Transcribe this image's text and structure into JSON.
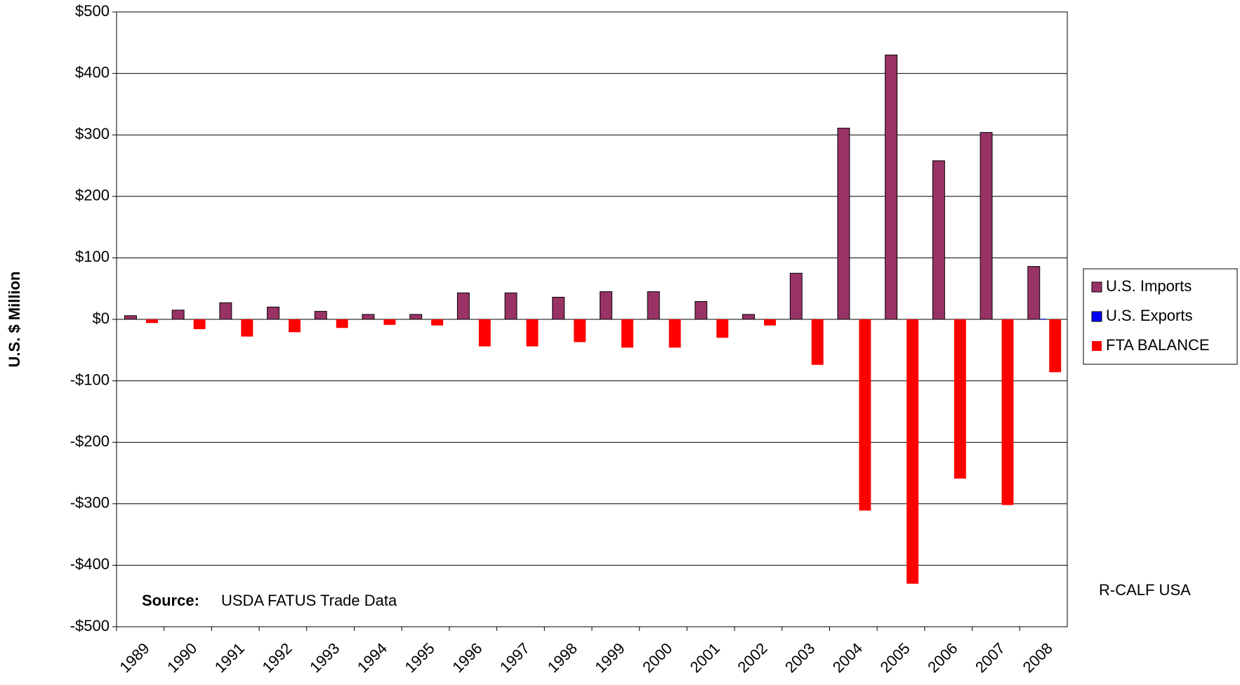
{
  "chart_data": {
    "type": "bar",
    "y_label": "U.S. $ Million",
    "categories": [
      "1989",
      "1990",
      "1991",
      "1992",
      "1993",
      "1994",
      "1995",
      "1996",
      "1997",
      "1998",
      "1999",
      "2000",
      "2001",
      "2002",
      "2003",
      "2004",
      "2005",
      "2006",
      "2007",
      "2008"
    ],
    "series": [
      {
        "name": "U.S. Imports",
        "color": "#993366",
        "values": [
          6,
          15,
          27,
          20,
          13,
          8,
          8,
          43,
          43,
          36,
          45,
          45,
          29,
          8,
          75,
          311,
          430,
          258,
          304,
          86
        ]
      },
      {
        "name": "U.S. Exports",
        "color": "#0000ff",
        "values": [
          0,
          0,
          0,
          0,
          0,
          0,
          0,
          0,
          0,
          0,
          0,
          0,
          0,
          0,
          0,
          0,
          0,
          0,
          0,
          1
        ]
      },
      {
        "name": "FTA BALANCE",
        "color": "#ff0000",
        "values": [
          -6,
          -16,
          -28,
          -21,
          -14,
          -9,
          -10,
          -44,
          -44,
          -37,
          -46,
          -46,
          -30,
          -10,
          -74,
          -311,
          -430,
          -259,
          -302,
          -86
        ]
      }
    ],
    "ylim": [
      -500,
      500
    ],
    "yticks": [
      {
        "value": -500,
        "label": "-$500"
      },
      {
        "value": -400,
        "label": "-$400"
      },
      {
        "value": -300,
        "label": "-$300"
      },
      {
        "value": -200,
        "label": "-$200"
      },
      {
        "value": -100,
        "label": "-$100"
      },
      {
        "value": 0,
        "label": "$0"
      },
      {
        "value": 100,
        "label": "$100"
      },
      {
        "value": 200,
        "label": "$200"
      },
      {
        "value": 300,
        "label": "$300"
      },
      {
        "value": 400,
        "label": "$400"
      },
      {
        "value": 500,
        "label": "$500"
      }
    ],
    "grid": true,
    "legend": "right",
    "source_label": "Source:",
    "source_text": "USDA FATUS Trade Data",
    "credit": "R-CALF USA"
  }
}
